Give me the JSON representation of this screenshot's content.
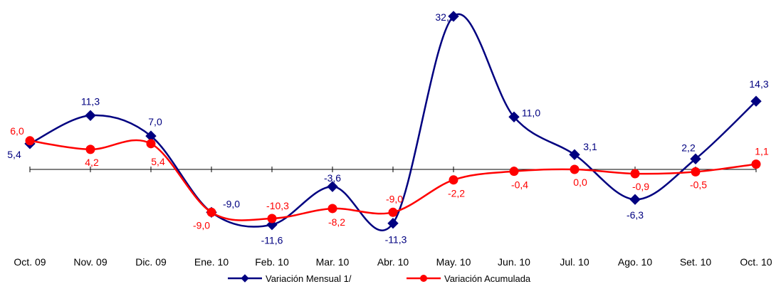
{
  "chart_data": {
    "type": "line",
    "categories": [
      "Oct. 09",
      "Nov. 09",
      "Dic. 09",
      "Ene. 10",
      "Feb. 10",
      "Mar. 10",
      "Abr. 10",
      "May. 10",
      "Jun. 10",
      "Jul. 10",
      "Ago. 10",
      "Set. 10",
      "Oct. 10"
    ],
    "series": [
      {
        "name": "Variación Mensual 1/",
        "color": "#000080",
        "marker": "diamond",
        "smooth": true,
        "values": [
          5.4,
          11.3,
          7.0,
          -9.0,
          -11.6,
          -3.6,
          -11.3,
          32.1,
          11.0,
          3.1,
          -6.3,
          2.2,
          14.3
        ],
        "labels": [
          "5,4",
          "11,3",
          "7,0",
          "-9,0",
          "-11,6",
          "-3,6",
          "-11,3",
          "32,1",
          "11,0",
          "3,1",
          "-6,3",
          "2,2",
          "14,3"
        ]
      },
      {
        "name": "Variación Acumulada",
        "color": "#ff0000",
        "marker": "circle",
        "smooth": true,
        "values": [
          6.0,
          4.2,
          5.4,
          -9.0,
          -10.3,
          -8.2,
          -9.0,
          -2.2,
          -0.4,
          0.0,
          -0.9,
          -0.5,
          1.1
        ],
        "labels": [
          "6,0",
          "4,2",
          "5,4",
          "-9,0",
          "-10,3",
          "-8,2",
          "-9,0",
          "-2,2",
          "-0,4",
          "0,0",
          "-0,9",
          "-0,5",
          "1,1"
        ]
      }
    ],
    "title": "",
    "xlabel": "",
    "ylabel": "",
    "ylim": [
      -15,
      35
    ],
    "grid": false,
    "legend": "bottom"
  }
}
